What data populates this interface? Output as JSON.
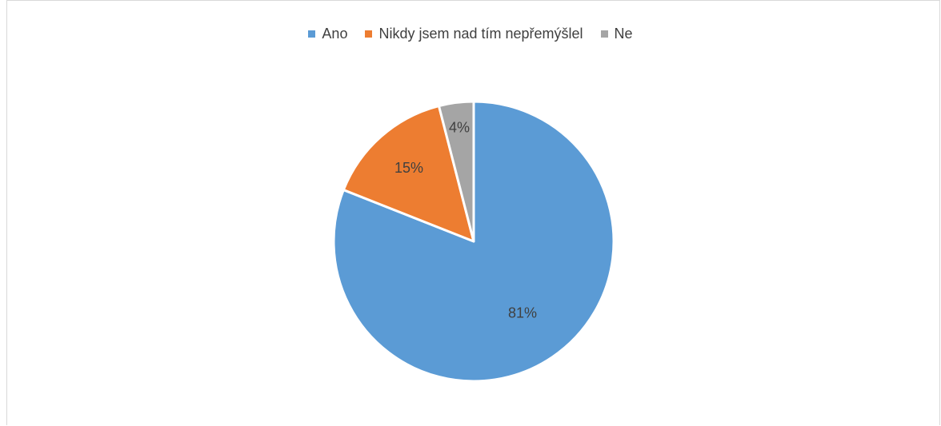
{
  "chart_data": {
    "type": "pie",
    "title": "",
    "legend_position": "top",
    "slices": [
      {
        "name": "Ano",
        "value": 81,
        "label": "81%",
        "color": "#5b9bd5"
      },
      {
        "name": "Nikdy jsem nad tím nepřemýšlel",
        "value": 15,
        "label": "15%",
        "color": "#ed7d31"
      },
      {
        "name": "Ne",
        "value": 4,
        "label": "4%",
        "color": "#a5a5a5"
      }
    ]
  }
}
